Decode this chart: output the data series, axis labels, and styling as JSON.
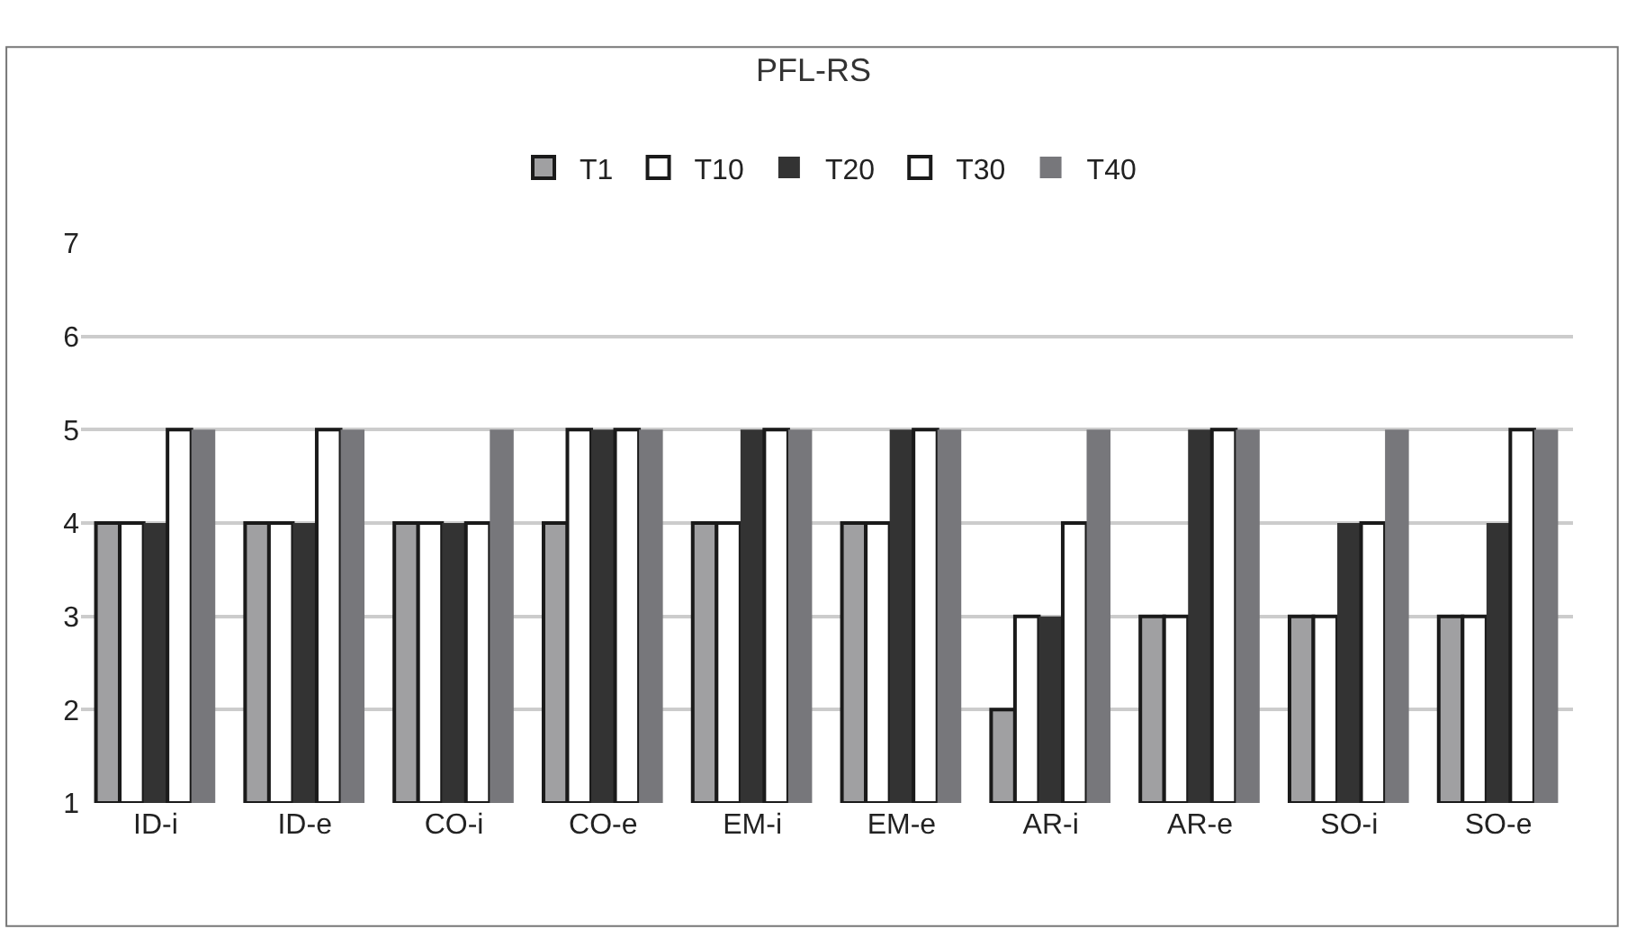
{
  "chart_data": {
    "type": "bar",
    "title": "PFL-RS",
    "categories": [
      "ID-i",
      "ID-e",
      "CO-i",
      "CO-e",
      "EM-i",
      "EM-e",
      "AR-i",
      "AR-e",
      "SO-i",
      "SO-e"
    ],
    "series": [
      {
        "name": "T1",
        "color": "#a0a0a2",
        "values": [
          4,
          4,
          4,
          4,
          4,
          4,
          2,
          3,
          3,
          3
        ]
      },
      {
        "name": "T10",
        "color": "#ffffff",
        "values": [
          4,
          4,
          4,
          5,
          4,
          4,
          3,
          3,
          3,
          3
        ]
      },
      {
        "name": "T20",
        "color": "#333333",
        "values": [
          4,
          4,
          4,
          5,
          5,
          5,
          3,
          5,
          4,
          4
        ]
      },
      {
        "name": "T30",
        "color": "#ffffff",
        "values": [
          5,
          5,
          4,
          5,
          5,
          5,
          4,
          5,
          4,
          5
        ]
      },
      {
        "name": "T40",
        "color": "#77777b",
        "values": [
          5,
          5,
          5,
          5,
          5,
          5,
          5,
          5,
          5,
          5
        ]
      }
    ],
    "ylim": [
      1,
      7
    ],
    "yticks": [
      1,
      2,
      3,
      4,
      5,
      6,
      7
    ],
    "grid": "y",
    "legend": "top"
  }
}
